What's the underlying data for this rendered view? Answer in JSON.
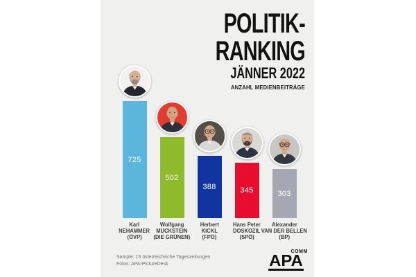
{
  "header": {
    "title": "POLITIK-RANKING",
    "subtitle": "JÄNNER 2022",
    "measure": "ANZAHL MEDIENBEITRÄGE"
  },
  "chart_data": {
    "type": "bar",
    "title": "POLITIK-RANKING",
    "subtitle": "JÄNNER 2022",
    "ylabel": "ANZAHL MEDIENBEITRÄGE",
    "categories": [
      "Karl NEHAMMER (ÖVP)",
      "Wolfgang MÜCKSTEIN (DIE GRÜNEN)",
      "Herbert KICKL (FPÖ)",
      "Hans Peter DOSKOZIL (SPÖ)",
      "Alexander VAN DER BELLEN (BP)"
    ],
    "values": [
      725,
      502,
      388,
      345,
      303
    ],
    "bar_colors": [
      "#5cb5dc",
      "#8eba2b",
      "#1134a0",
      "#e60d2e",
      "#a5a8b3"
    ],
    "ylim": [
      0,
      760
    ],
    "grid": false,
    "legend": "none",
    "value_label_style": "white-centered-inside-bar",
    "people": [
      {
        "first": "Karl",
        "last": "NEHAMMER",
        "party": "(ÖVP)",
        "value": 725,
        "bar_color": "#5cb5dc",
        "avatar": {
          "bg": "#f2f1ef",
          "hair": "#8f8f8d",
          "skin": "#d7af96",
          "suit": "#23262e",
          "shirt": "#e9e9e9",
          "beard": "#8c8a86",
          "glasses": false,
          "bald": false
        }
      },
      {
        "first": "Wolfgang",
        "last": "MÜCKSTEIN",
        "party": "(DIE GRÜNEN)",
        "value": 502,
        "bar_color": "#8eba2b",
        "avatar": {
          "bg": "#e23b30",
          "hair": "#42362b",
          "skin": "#d2a482",
          "suit": "#2e3238",
          "shirt": "#f1f1f1",
          "beard": null,
          "glasses": false,
          "bald": false
        }
      },
      {
        "first": "Herbert",
        "last": "KICKL",
        "party": "(FPÖ)",
        "value": 388,
        "bar_color": "#1134a0",
        "avatar": {
          "bg": "#544f49",
          "hair": "#77623f",
          "skin": "#d6ab8d",
          "suit": "#d8d8d8",
          "shirt": "#f0f0f0",
          "beard": null,
          "glasses": true,
          "bald": false
        }
      },
      {
        "first": "Hans Peter",
        "last": "DOSKOZIL",
        "party": "(SPÖ)",
        "value": 345,
        "bar_color": "#e60d2e",
        "avatar": {
          "bg": "#d9d8d5",
          "hair": null,
          "skin": "#d3a98f",
          "suit": "#2c3442",
          "shirt": "#eeeeee",
          "beard": "#41372f",
          "glasses": false,
          "bald": true
        }
      },
      {
        "first": "Alexander",
        "last": "VAN DER BELLEN",
        "party": "(BP)",
        "value": 303,
        "bar_color": "#a5a8b3",
        "avatar": {
          "bg": "#c8c7c4",
          "hair": "#b0afac",
          "skin": "#d2a88c",
          "suit": "#33363c",
          "shirt": "#e6e6e6",
          "beard": null,
          "glasses": true,
          "bald": false
        }
      }
    ]
  },
  "footer": {
    "sample": "Sample: 15 österreichische Tageszeitungen",
    "photos": "Fotos: APA-PictureDesk"
  },
  "logo": {
    "apa": "APA",
    "comm": "COMM"
  }
}
